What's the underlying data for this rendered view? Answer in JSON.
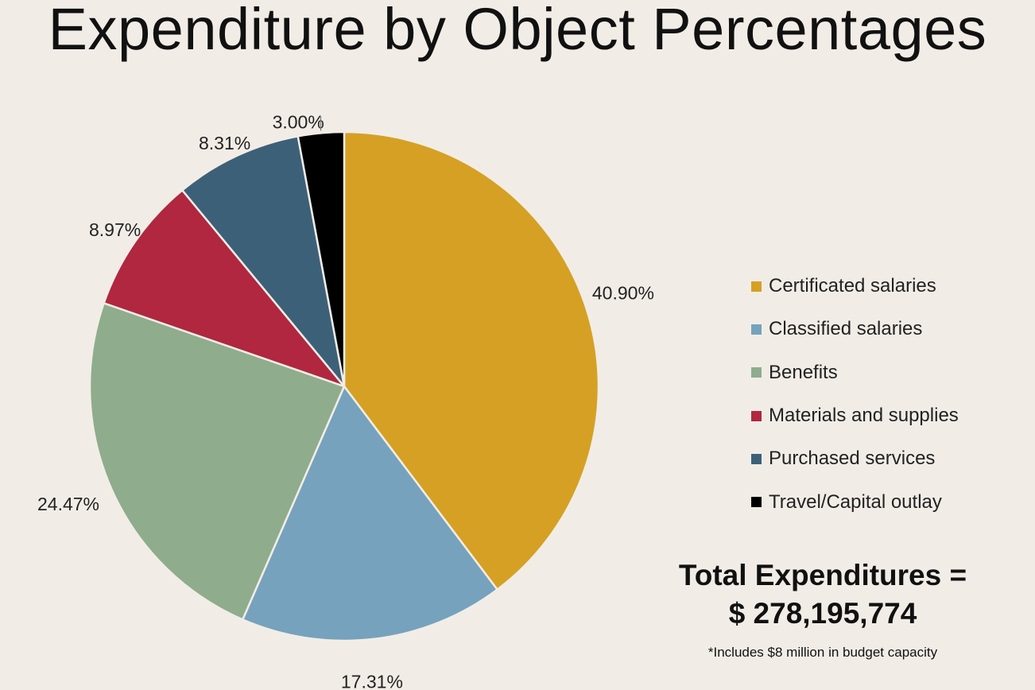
{
  "chart_data": {
    "type": "pie",
    "title": "Expenditure by Object Percentages",
    "categories": [
      "Certificated salaries",
      "Classified salaries",
      "Benefits",
      "Materials and supplies",
      "Purchased services",
      "Travel/Capital outlay"
    ],
    "values": [
      40.9,
      17.31,
      24.47,
      8.97,
      8.31,
      3.0
    ],
    "value_labels": [
      "40.90%",
      "17.31%",
      "24.47%",
      "8.97%",
      "8.31%",
      "3.00%"
    ],
    "colors": [
      "#d6a024",
      "#76a2bd",
      "#8fac8d",
      "#b0273f",
      "#3d6079",
      "#000000"
    ],
    "start_angle_deg": 0,
    "direction": "clockwise",
    "legend": {
      "position": "right",
      "entries": [
        "Certificated salaries",
        "Classified salaries",
        "Benefits",
        "Materials and supplies",
        "Purchased services",
        "Travel/Capital outlay"
      ]
    }
  },
  "summary": {
    "total_line1": "Total Expenditures =",
    "total_line2": "$ 278,195,774",
    "footnote": "*Includes $8 million in budget capacity"
  }
}
